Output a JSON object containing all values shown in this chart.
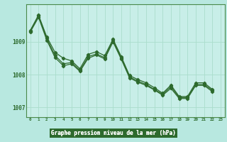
{
  "title": "Graphe pression niveau de la mer (hPa)",
  "background_color": "#b8e8e0",
  "plot_bg_color": "#c8eee8",
  "bottom_bar_color": "#2d6a2d",
  "line_color": "#2d6a2d",
  "grid_color": "#aaddcc",
  "ylim": [
    1006.7,
    1010.15
  ],
  "xlim": [
    -0.5,
    23.5
  ],
  "yticks": [
    1007,
    1008,
    1009
  ],
  "xticks": [
    0,
    1,
    2,
    3,
    4,
    5,
    6,
    7,
    8,
    9,
    10,
    11,
    12,
    13,
    14,
    15,
    16,
    17,
    18,
    19,
    20,
    21,
    22,
    23
  ],
  "series": [
    [
      1009.35,
      1009.82,
      1009.15,
      1008.68,
      1008.5,
      1008.42,
      1008.18,
      1008.62,
      1008.7,
      1008.58,
      1009.08,
      1008.55,
      1007.97,
      1007.85,
      1007.75,
      1007.6,
      1007.43,
      1007.68,
      1007.33,
      1007.33,
      1007.75,
      1007.75,
      1007.55,
      null
    ],
    [
      1009.33,
      1009.8,
      1009.1,
      1008.58,
      1008.33,
      1008.37,
      1008.13,
      1008.55,
      1008.63,
      1008.52,
      1009.05,
      1008.5,
      1007.93,
      1007.8,
      1007.7,
      1007.55,
      1007.4,
      1007.63,
      1007.3,
      1007.3,
      1007.7,
      1007.7,
      1007.52,
      null
    ],
    [
      1009.3,
      1009.75,
      1009.05,
      1008.52,
      1008.27,
      1008.33,
      1008.1,
      1008.5,
      1008.6,
      1008.48,
      1009.0,
      1008.47,
      1007.9,
      1007.77,
      1007.67,
      1007.53,
      1007.37,
      1007.58,
      1007.27,
      1007.27,
      1007.67,
      1007.67,
      1007.48,
      null
    ]
  ]
}
